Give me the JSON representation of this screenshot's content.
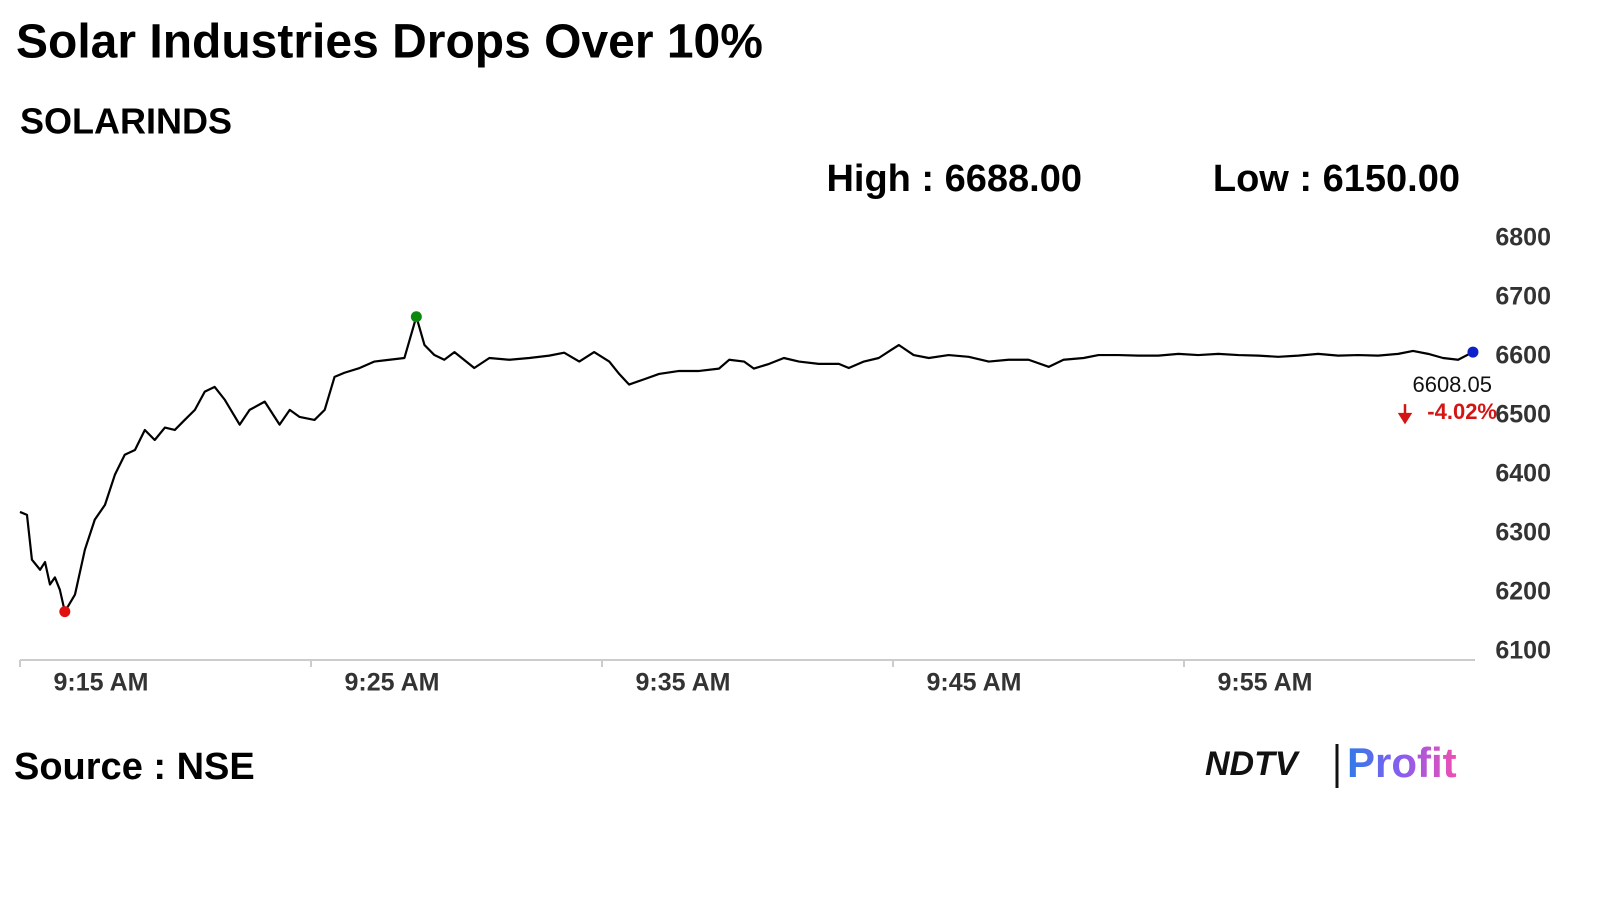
{
  "chart_data": {
    "type": "line",
    "title": "Solar Industries Drops Over 10%",
    "subtitle": "SOLARINDS",
    "high_label": "High : 6688.00",
    "low_label": "Low : 6150.00",
    "last_label": "6608.05",
    "change_label": "-4.02%",
    "source": "Source : NSE",
    "brand": "NDTV",
    "brand_sub": "Profit",
    "color": "#000000",
    "min_color": "#e01010",
    "max_color": "#0a8a0a",
    "last_color": "#1020c8",
    "change_color": "#d41515",
    "axis_color": "#cccccc",
    "xlim": [
      555,
      605
    ],
    "xticks": [
      {
        "value": 555,
        "label": "9:15 AM"
      },
      {
        "value": 565,
        "label": "9:25 AM"
      },
      {
        "value": 575,
        "label": "9:35 AM"
      },
      {
        "value": 585,
        "label": "9:45 AM"
      },
      {
        "value": 595,
        "label": "9:55 AM"
      }
    ],
    "ylim": [
      6086,
      6815
    ],
    "yticks": [
      6800,
      6700,
      6600,
      6500,
      6400,
      6300,
      6200,
      6100
    ],
    "x": [
      555.0,
      555.24,
      555.41,
      555.69,
      555.86,
      556.03,
      556.2,
      556.37,
      556.54,
      556.89,
      557.23,
      557.57,
      557.92,
      558.26,
      558.6,
      558.95,
      559.29,
      559.63,
      559.98,
      560.32,
      560.66,
      561.01,
      561.35,
      561.69,
      562.04,
      562.55,
      562.89,
      563.41,
      563.92,
      564.27,
      564.61,
      565.12,
      565.47,
      565.81,
      566.15,
      566.67,
      567.18,
      567.7,
      568.21,
      568.62,
      568.9,
      569.24,
      569.58,
      569.93,
      570.61,
      571.13,
      571.82,
      572.5,
      573.19,
      573.7,
      574.22,
      574.73,
      575.25,
      575.59,
      575.93,
      576.45,
      576.96,
      577.65,
      578.34,
      579.02,
      579.37,
      579.88,
      580.22,
      580.74,
      581.25,
      581.77,
      582.45,
      583.14,
      583.48,
      584.0,
      584.51,
      585.2,
      585.71,
      586.23,
      586.91,
      587.6,
      588.29,
      588.97,
      589.66,
      590.35,
      590.86,
      591.55,
      592.06,
      592.75,
      593.43,
      594.12,
      594.81,
      595.49,
      596.18,
      596.87,
      597.55,
      598.24,
      598.93,
      599.61,
      600.3,
      600.98,
      601.67,
      602.36,
      602.87,
      603.39,
      603.9,
      604.42,
      604.93
    ],
    "values": [
      6337,
      6332,
      6256,
      6239,
      6252,
      6214,
      6226,
      6205,
      6168,
      6197,
      6273,
      6324,
      6349,
      6400,
      6434,
      6442,
      6476,
      6459,
      6480,
      6476,
      6493,
      6510,
      6541,
      6549,
      6527,
      6485,
      6510,
      6524,
      6485,
      6510,
      6498,
      6493,
      6510,
      6566,
      6573,
      6581,
      6592,
      6595,
      6598,
      6668,
      6620,
      6603,
      6595,
      6608,
      6581,
      6598,
      6595,
      6598,
      6602,
      6607,
      6592,
      6608,
      6592,
      6571,
      6553,
      6562,
      6571,
      6576,
      6576,
      6580,
      6595,
      6592,
      6580,
      6588,
      6598,
      6592,
      6588,
      6588,
      6581,
      6592,
      6598,
      6620,
      6603,
      6598,
      6603,
      6600,
      6592,
      6595,
      6595,
      6583,
      6595,
      6598,
      6603,
      6603,
      6602,
      6602,
      6605,
      6603,
      6605,
      6603,
      6602,
      6600,
      6602,
      6605,
      6602,
      6603,
      6602,
      6605,
      6610,
      6605,
      6598,
      6595,
      6608.05
    ]
  }
}
